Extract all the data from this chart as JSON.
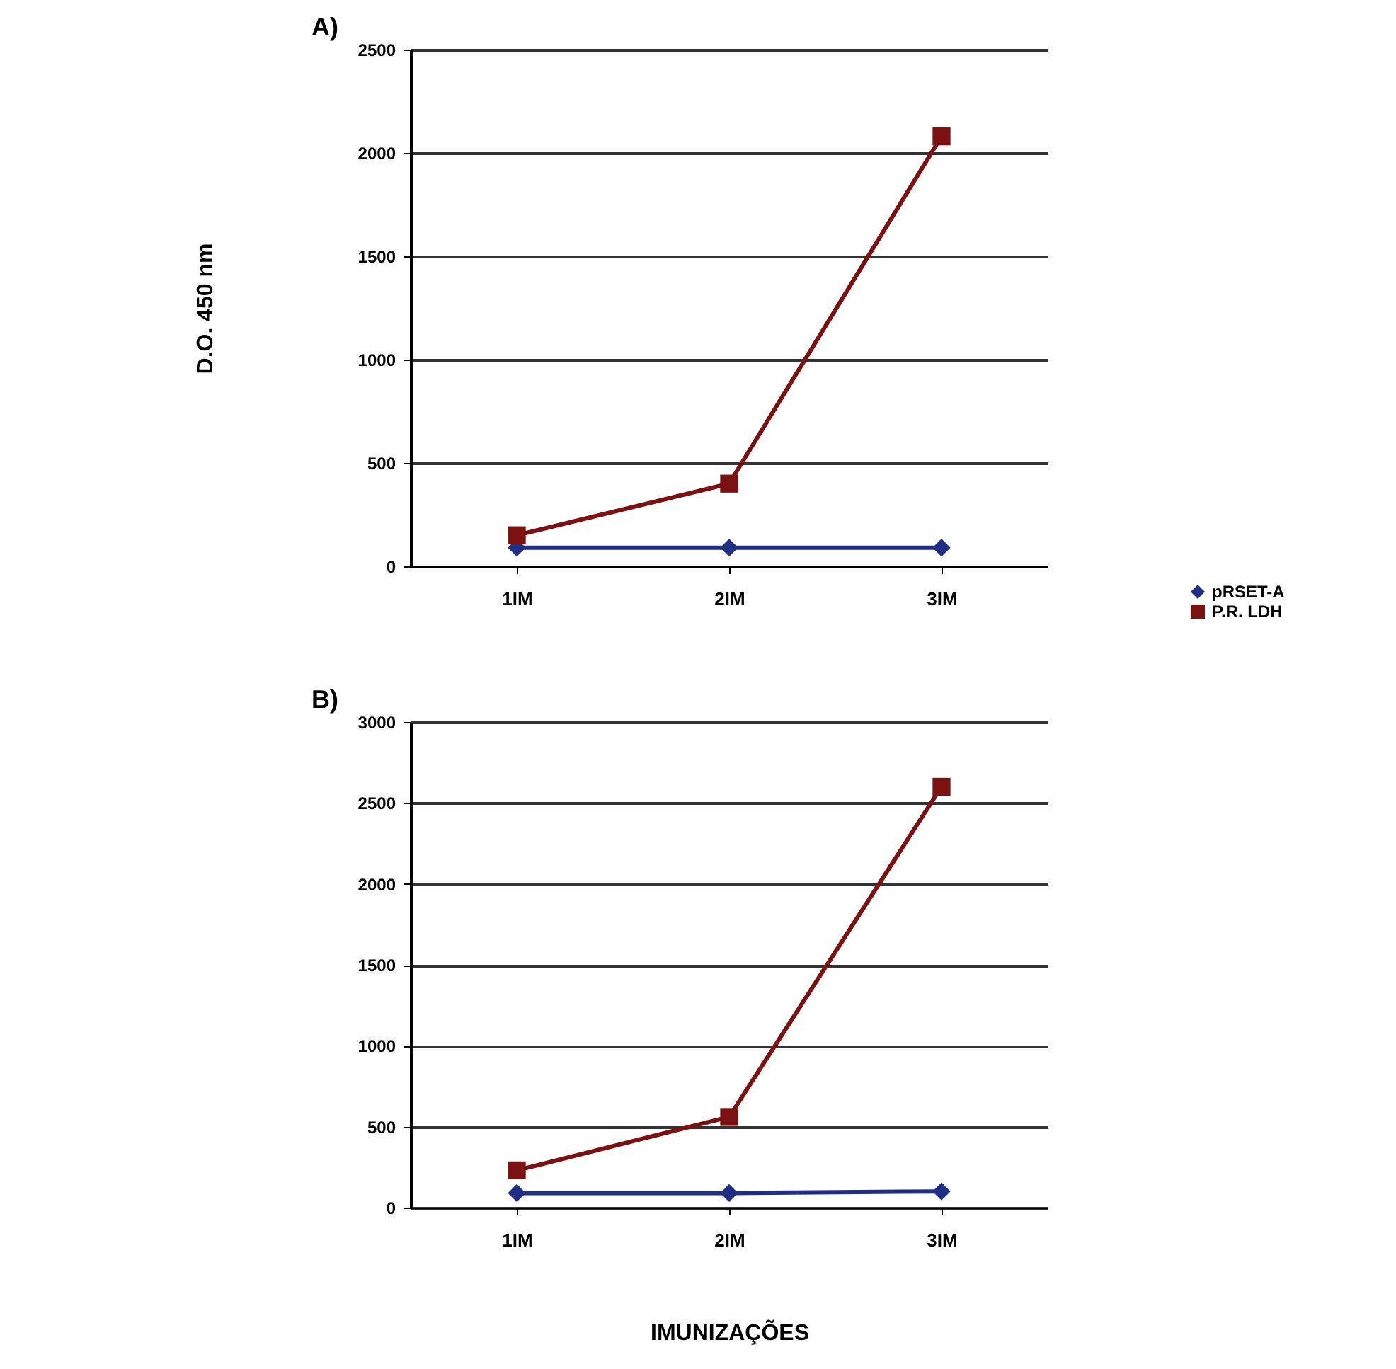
{
  "chart_data": [
    {
      "type": "line",
      "title": "A)",
      "ylabel": "D.O. 450 nm",
      "categories": [
        "1IM",
        "2IM",
        "3IM"
      ],
      "series": [
        {
          "name": "pRSET-A",
          "color": "#1f2f86",
          "marker": "diamond",
          "values": [
            90,
            90,
            90
          ]
        },
        {
          "name": "P.R. LDH",
          "color": "#7b1111",
          "marker": "square",
          "values": [
            150,
            400,
            2080
          ]
        }
      ],
      "ylim": [
        0,
        2500
      ],
      "yticks": [
        0,
        500,
        1000,
        1500,
        2000,
        2500
      ],
      "grid": "y",
      "legend": "right",
      "line_style": "solid"
    },
    {
      "type": "line",
      "title": "B)",
      "xlabel": "IMUNIZAÇÕES",
      "categories": [
        "1IM",
        "2IM",
        "3IM"
      ],
      "series": [
        {
          "color": "#1f2f86",
          "marker": "diamond",
          "values": [
            90,
            90,
            100
          ]
        },
        {
          "color": "#7b1111",
          "marker": "square",
          "values": [
            230,
            560,
            2600
          ]
        }
      ],
      "ylim": [
        0,
        3000
      ],
      "yticks": [
        0,
        500,
        1000,
        1500,
        2000,
        2500,
        3000
      ],
      "grid": "y",
      "line_style": "solid"
    }
  ]
}
